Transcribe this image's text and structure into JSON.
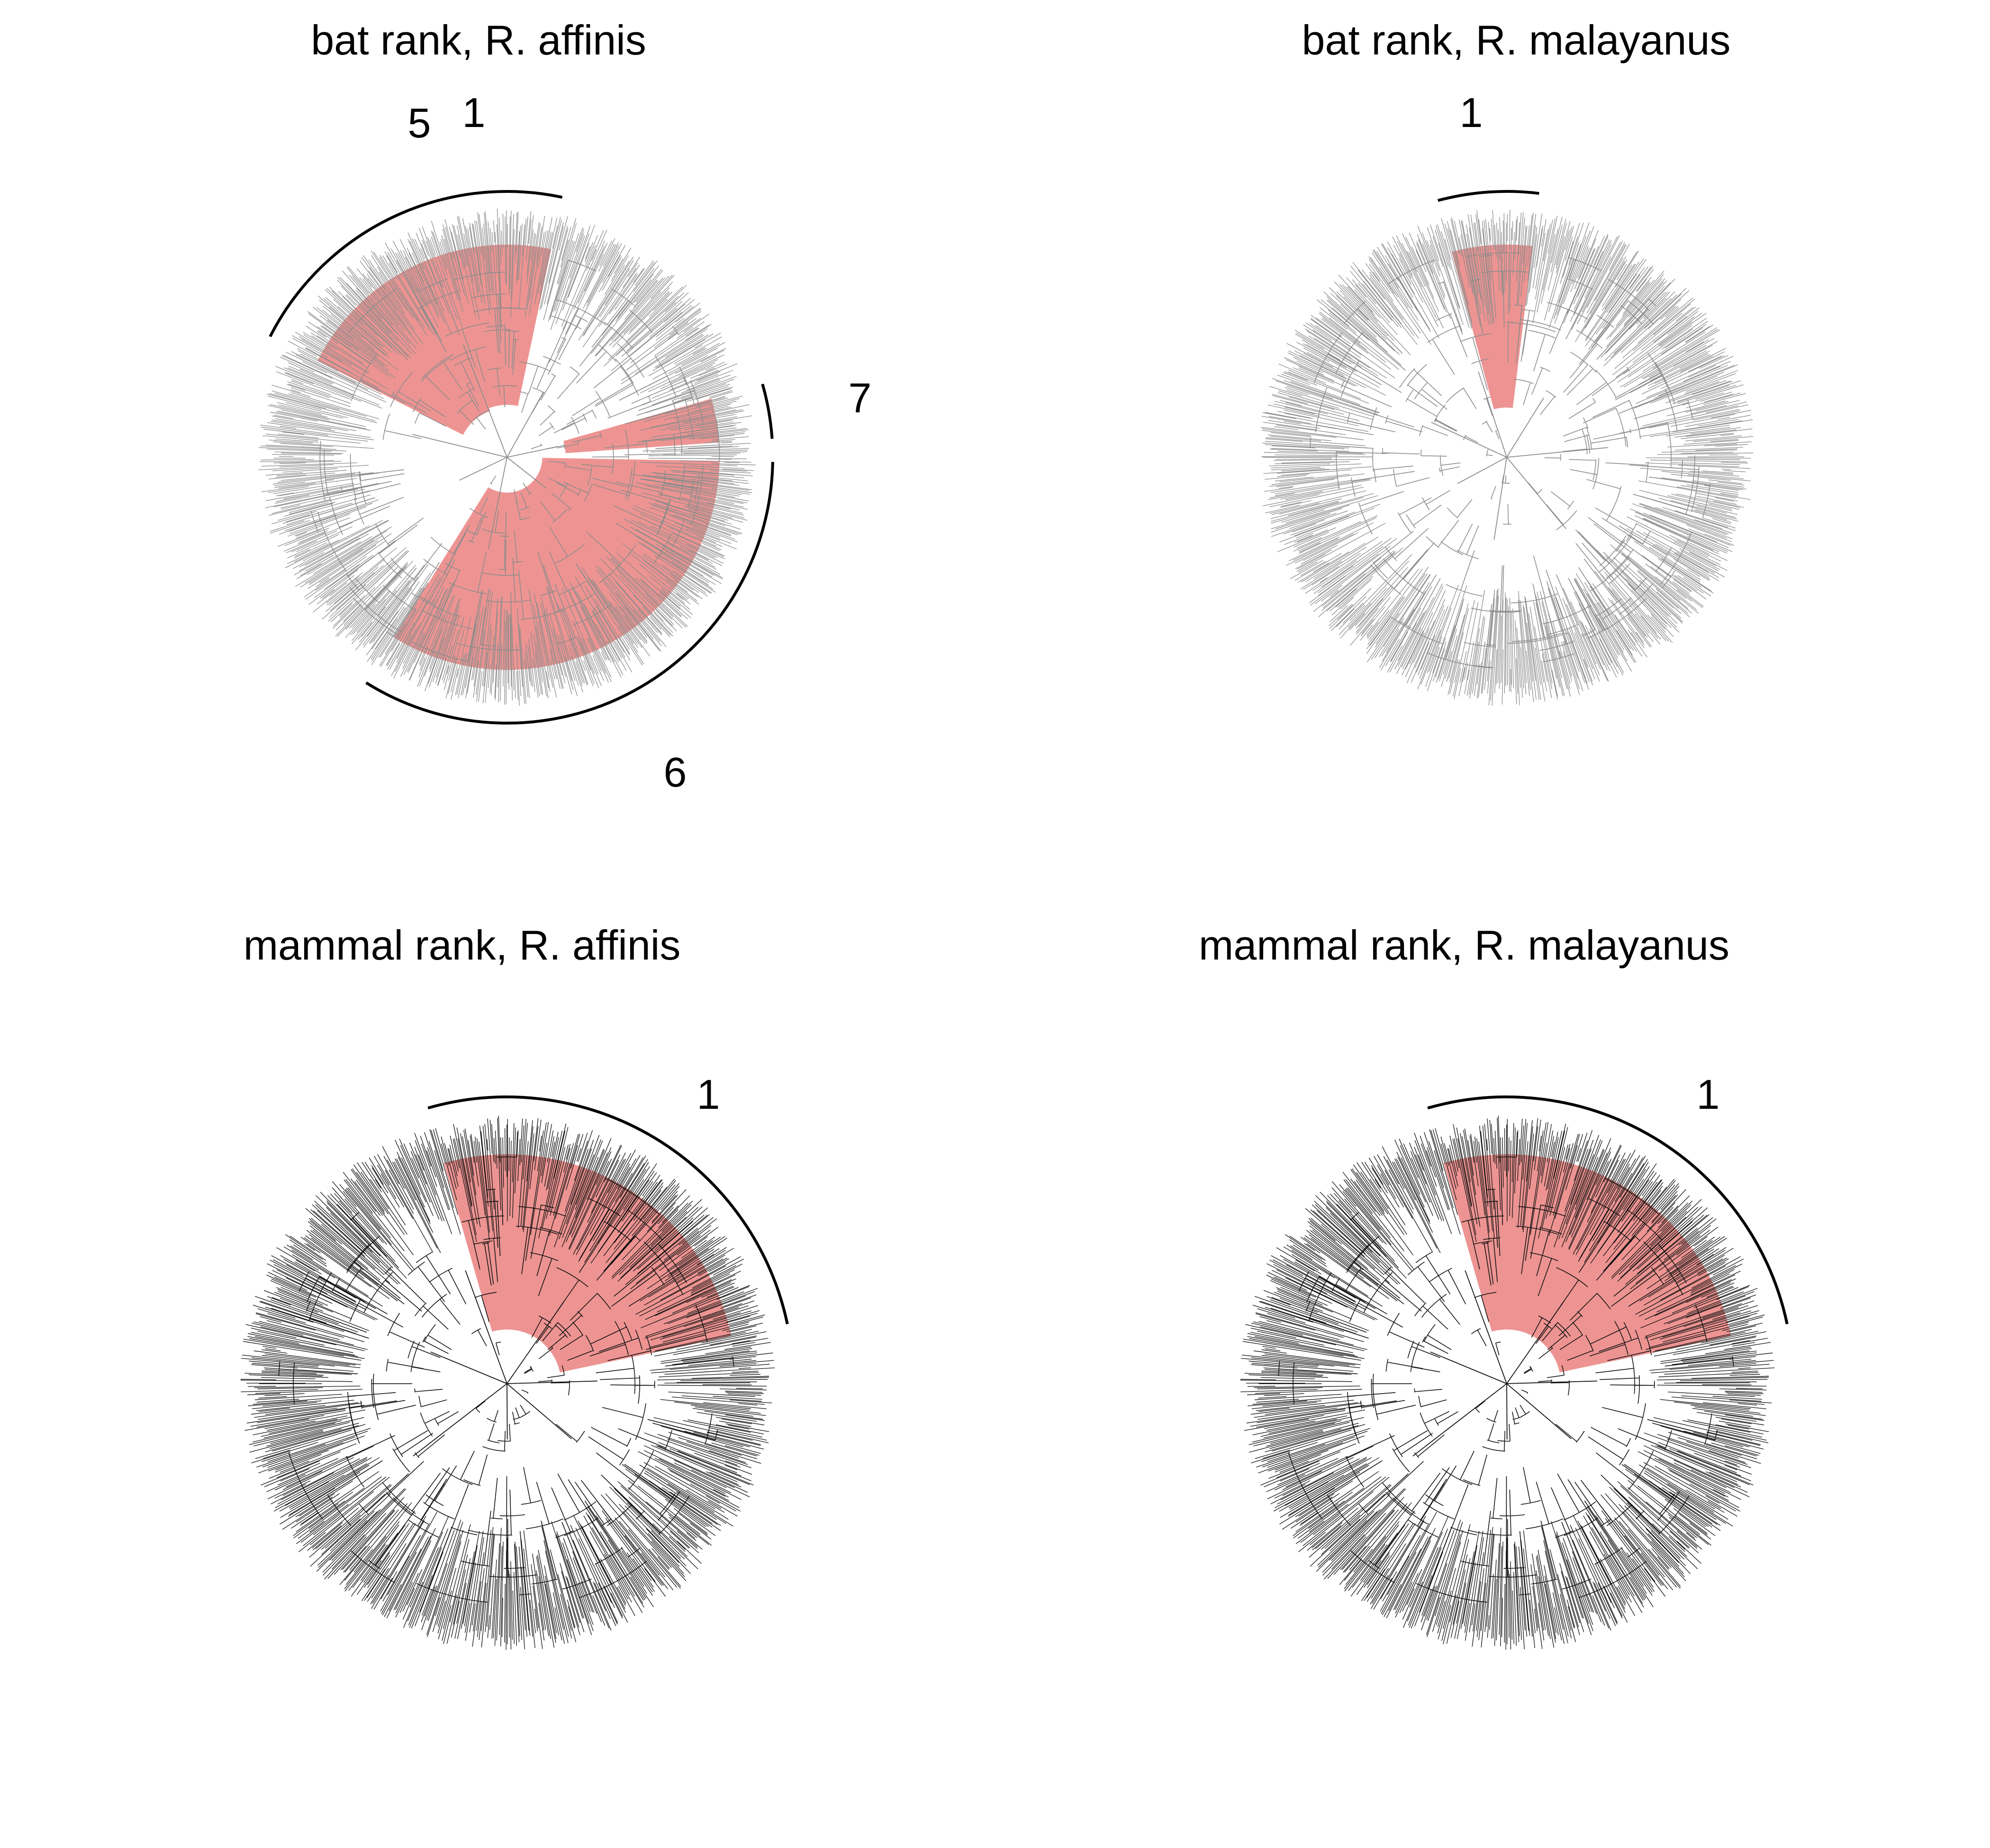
{
  "figure": {
    "panels": [
      {
        "id": "bat-affinis",
        "title": "bat rank, R. affinis",
        "tree_color": "#8c8c8c",
        "highlight_color": "#e35b57",
        "highlighted_clades": [
          {
            "label": "5",
            "arc_from_deg": 153,
            "arc_to_deg": 110
          },
          {
            "label": "1",
            "arc_from_deg": 110,
            "arc_to_deg": 78
          },
          {
            "label": "7",
            "arc_from_deg": 16,
            "arc_to_deg": 4
          },
          {
            "label": "6",
            "arc_from_deg": 359,
            "arc_to_deg": 238
          }
        ]
      },
      {
        "id": "bat-malayanus",
        "title": "bat rank, R. malayanus",
        "tree_color": "#8c8c8c",
        "highlight_color": "#e35b57",
        "highlighted_clades": [
          {
            "label": "1",
            "arc_from_deg": 105,
            "arc_to_deg": 83
          }
        ]
      },
      {
        "id": "mammal-affinis",
        "title": "mammal rank, R. affinis",
        "tree_color": "#111111",
        "highlight_color": "#e35b57",
        "highlighted_clades": [
          {
            "label": "1",
            "arc_from_deg": 106,
            "arc_to_deg": 12
          }
        ]
      },
      {
        "id": "mammal-malayanus",
        "title": "mammal rank, R. malayanus",
        "tree_color": "#111111",
        "highlight_color": "#e35b57",
        "highlighted_clades": [
          {
            "label": "1",
            "arc_from_deg": 106,
            "arc_to_deg": 12
          }
        ]
      }
    ]
  }
}
